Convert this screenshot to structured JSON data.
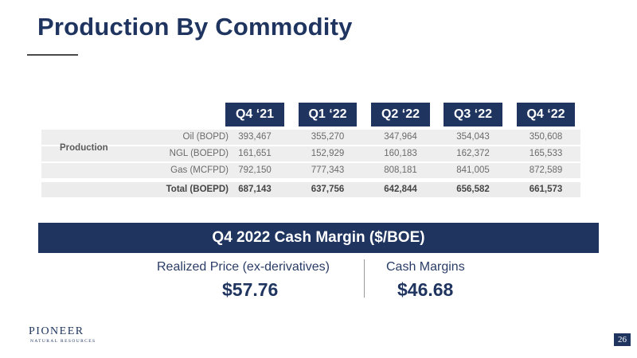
{
  "page": {
    "title": "Production By Commodity",
    "page_number": "26",
    "colors": {
      "navy": "#1f3560",
      "row_bg": "#eeeeee",
      "muted_text": "#6b6b6b"
    }
  },
  "table": {
    "quarters": [
      "Q4 ‘21",
      "Q1 ‘22",
      "Q2 ‘22",
      "Q3 ‘22",
      "Q4 ‘22"
    ],
    "section_label": "Production",
    "rows": [
      {
        "label": "Oil (BOPD)",
        "values": [
          "393,467",
          "355,270",
          "347,964",
          "354,043",
          "350,608"
        ]
      },
      {
        "label": "NGL (BOEPD)",
        "values": [
          "161,651",
          "152,929",
          "160,183",
          "162,372",
          "165,533"
        ]
      },
      {
        "label": "Gas (MCFPD)",
        "values": [
          "792,150",
          "777,343",
          "808,181",
          "841,005",
          "872,589"
        ]
      }
    ],
    "total": {
      "label": "Total (BOEPD)",
      "values": [
        "687,143",
        "637,756",
        "642,844",
        "656,582",
        "661,573"
      ]
    }
  },
  "cash_margin": {
    "banner": "Q4 2022 Cash Margin ($/BOE)",
    "realized_label": "Realized Price (ex-derivatives)",
    "realized_value": "$57.76",
    "margin_label": "Cash Margins",
    "margin_value": "$46.68"
  },
  "logo": {
    "name": "PIONEER",
    "subtitle": "NATURAL RESOURCES"
  }
}
